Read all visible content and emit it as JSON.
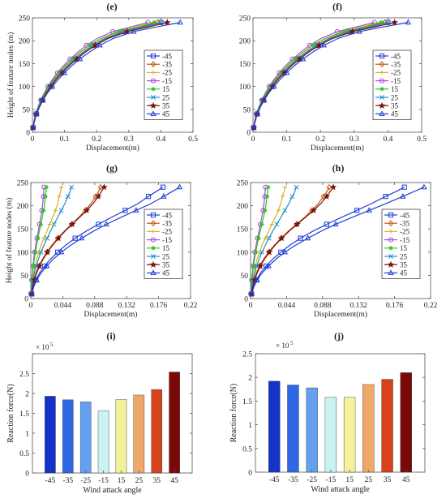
{
  "chart_data": [
    {
      "panel": "(e)",
      "type": "line",
      "ylabel": "Height of feature nodes (m)",
      "xlabel": "Displacement(m)",
      "xlim": [
        0,
        0.5
      ],
      "ylim": [
        0,
        250
      ],
      "xticks": [
        0,
        0.1,
        0.2,
        0.3,
        0.4,
        0.5
      ],
      "xtick_labels": [
        "0",
        "0.1",
        "0.2",
        "0.3",
        "0.4",
        "0.5"
      ],
      "yticks": [
        0,
        50,
        100,
        150,
        200,
        250
      ],
      "legend_position": "right",
      "y": [
        10,
        25,
        40,
        55,
        70,
        85,
        100,
        115,
        130,
        145,
        160,
        175,
        190,
        205,
        220,
        230,
        240
      ],
      "series": [
        {
          "name": "-45",
          "color": "#1f3fd6",
          "marker": "square",
          "values": [
            0.002,
            0.006,
            0.012,
            0.02,
            0.03,
            0.042,
            0.056,
            0.072,
            0.09,
            0.11,
            0.133,
            0.16,
            0.19,
            0.23,
            0.29,
            0.35,
            0.4
          ]
        },
        {
          "name": "-35",
          "color": "#c25a10",
          "marker": "diamond",
          "values": [
            0.002,
            0.006,
            0.011,
            0.019,
            0.029,
            0.041,
            0.054,
            0.07,
            0.088,
            0.108,
            0.131,
            0.157,
            0.187,
            0.225,
            0.28,
            0.335,
            0.39
          ]
        },
        {
          "name": "-25",
          "color": "#d8b41e",
          "marker": "plus",
          "values": [
            0.002,
            0.005,
            0.011,
            0.018,
            0.027,
            0.038,
            0.051,
            0.066,
            0.083,
            0.102,
            0.124,
            0.149,
            0.178,
            0.214,
            0.265,
            0.32,
            0.375
          ]
        },
        {
          "name": "-15",
          "color": "#a64bd9",
          "marker": "circle",
          "values": [
            0.002,
            0.005,
            0.01,
            0.017,
            0.026,
            0.036,
            0.048,
            0.062,
            0.078,
            0.096,
            0.117,
            0.141,
            0.168,
            0.202,
            0.25,
            0.305,
            0.36
          ]
        },
        {
          "name": "15",
          "color": "#2ec41e",
          "marker": "asterisk",
          "values": [
            0.002,
            0.006,
            0.011,
            0.018,
            0.027,
            0.038,
            0.051,
            0.066,
            0.083,
            0.102,
            0.124,
            0.149,
            0.178,
            0.214,
            0.27,
            0.33,
            0.38
          ]
        },
        {
          "name": "25",
          "color": "#1e8fd0",
          "marker": "x",
          "values": [
            0.002,
            0.006,
            0.012,
            0.02,
            0.03,
            0.042,
            0.056,
            0.072,
            0.09,
            0.11,
            0.133,
            0.16,
            0.19,
            0.228,
            0.285,
            0.345,
            0.4
          ]
        },
        {
          "name": "35",
          "color": "#7a1010",
          "marker": "star",
          "values": [
            0.002,
            0.006,
            0.012,
            0.021,
            0.031,
            0.043,
            0.058,
            0.074,
            0.093,
            0.114,
            0.138,
            0.165,
            0.196,
            0.236,
            0.295,
            0.36,
            0.42
          ]
        },
        {
          "name": "45",
          "color": "#1f3fd6",
          "marker": "triangle",
          "values": [
            0.002,
            0.007,
            0.013,
            0.022,
            0.033,
            0.046,
            0.062,
            0.08,
            0.1,
            0.122,
            0.148,
            0.177,
            0.21,
            0.252,
            0.315,
            0.385,
            0.46
          ]
        }
      ]
    },
    {
      "panel": "(f)",
      "type": "line",
      "ylabel": "",
      "xlabel": "Displacement(m)",
      "xlim": [
        0,
        0.5
      ],
      "ylim": [
        0,
        250
      ],
      "xticks": [
        0,
        0.1,
        0.2,
        0.3,
        0.4,
        0.5
      ],
      "xtick_labels": [
        "0",
        "0.1",
        "0.2",
        "0.3",
        "0.4",
        "0.5"
      ],
      "yticks": [
        0,
        50,
        100,
        150,
        200,
        250
      ],
      "legend_position": "right",
      "y": [
        10,
        25,
        40,
        55,
        70,
        85,
        100,
        115,
        130,
        145,
        160,
        175,
        190,
        205,
        220,
        230,
        240
      ],
      "series": [
        {
          "name": "-45",
          "color": "#1f3fd6",
          "marker": "square",
          "values": [
            0.002,
            0.006,
            0.012,
            0.02,
            0.03,
            0.042,
            0.056,
            0.072,
            0.09,
            0.11,
            0.133,
            0.16,
            0.19,
            0.23,
            0.29,
            0.35,
            0.4
          ]
        },
        {
          "name": "-35",
          "color": "#c25a10",
          "marker": "diamond",
          "values": [
            0.002,
            0.006,
            0.011,
            0.019,
            0.029,
            0.041,
            0.054,
            0.07,
            0.088,
            0.108,
            0.131,
            0.157,
            0.187,
            0.225,
            0.28,
            0.335,
            0.39
          ]
        },
        {
          "name": "-25",
          "color": "#d8b41e",
          "marker": "plus",
          "values": [
            0.002,
            0.005,
            0.011,
            0.018,
            0.027,
            0.038,
            0.051,
            0.066,
            0.083,
            0.102,
            0.124,
            0.149,
            0.178,
            0.214,
            0.265,
            0.32,
            0.375
          ]
        },
        {
          "name": "-15",
          "color": "#a64bd9",
          "marker": "circle",
          "values": [
            0.002,
            0.005,
            0.01,
            0.017,
            0.026,
            0.036,
            0.048,
            0.062,
            0.078,
            0.096,
            0.117,
            0.141,
            0.168,
            0.202,
            0.25,
            0.305,
            0.36
          ]
        },
        {
          "name": "15",
          "color": "#2ec41e",
          "marker": "asterisk",
          "values": [
            0.002,
            0.006,
            0.011,
            0.018,
            0.027,
            0.038,
            0.051,
            0.066,
            0.083,
            0.102,
            0.124,
            0.149,
            0.178,
            0.214,
            0.27,
            0.33,
            0.38
          ]
        },
        {
          "name": "25",
          "color": "#1e8fd0",
          "marker": "x",
          "values": [
            0.002,
            0.006,
            0.012,
            0.02,
            0.03,
            0.042,
            0.056,
            0.072,
            0.09,
            0.11,
            0.133,
            0.16,
            0.19,
            0.228,
            0.285,
            0.345,
            0.4
          ]
        },
        {
          "name": "35",
          "color": "#7a1010",
          "marker": "star",
          "values": [
            0.002,
            0.006,
            0.012,
            0.021,
            0.031,
            0.043,
            0.058,
            0.074,
            0.093,
            0.114,
            0.138,
            0.165,
            0.196,
            0.236,
            0.295,
            0.36,
            0.42
          ]
        },
        {
          "name": "45",
          "color": "#1f3fd6",
          "marker": "triangle",
          "values": [
            0.002,
            0.007,
            0.013,
            0.022,
            0.033,
            0.046,
            0.062,
            0.08,
            0.1,
            0.122,
            0.148,
            0.177,
            0.21,
            0.252,
            0.315,
            0.385,
            0.46
          ]
        }
      ]
    },
    {
      "panel": "(g)",
      "type": "line",
      "ylabel": "Height of feature nodes (m)",
      "xlabel": "Displacement(m)",
      "xlim": [
        0,
        0.22
      ],
      "ylim": [
        0,
        250
      ],
      "xticks": [
        0,
        0.044,
        0.088,
        0.132,
        0.176,
        0.22
      ],
      "xtick_labels": [
        "0",
        "0.044",
        "0.088",
        "0.132",
        "0.176",
        "0.22"
      ],
      "yticks": [
        0,
        50,
        100,
        150,
        200,
        250
      ],
      "legend_position": "right",
      "y": [
        10,
        25,
        40,
        55,
        70,
        85,
        100,
        115,
        130,
        145,
        160,
        175,
        190,
        205,
        220,
        230,
        240
      ],
      "series": [
        {
          "name": "-45",
          "color": "#1f3fd6",
          "marker": "square",
          "values": [
            0.001,
            0.003,
            0.007,
            0.012,
            0.019,
            0.027,
            0.037,
            0.048,
            0.061,
            0.076,
            0.093,
            0.111,
            0.13,
            0.148,
            0.162,
            0.172,
            0.182
          ]
        },
        {
          "name": "-35",
          "color": "#c25a10",
          "marker": "diamond",
          "values": [
            0.001,
            0.002,
            0.004,
            0.007,
            0.011,
            0.016,
            0.022,
            0.029,
            0.037,
            0.046,
            0.056,
            0.066,
            0.075,
            0.083,
            0.089,
            0.093,
            0.096
          ]
        },
        {
          "name": "-25",
          "color": "#d8b41e",
          "marker": "plus",
          "values": [
            0.0005,
            0.001,
            0.002,
            0.004,
            0.006,
            0.008,
            0.011,
            0.014,
            0.018,
            0.022,
            0.026,
            0.03,
            0.034,
            0.037,
            0.039,
            0.041,
            0.042
          ]
        },
        {
          "name": "-15",
          "color": "#a64bd9",
          "marker": "circle",
          "values": [
            0.0003,
            0.0007,
            0.0013,
            0.0022,
            0.003,
            0.004,
            0.0053,
            0.0068,
            0.0085,
            0.0103,
            0.012,
            0.0137,
            0.0152,
            0.0164,
            0.0173,
            0.0178,
            0.0182
          ]
        },
        {
          "name": "15",
          "color": "#2ec41e",
          "marker": "asterisk",
          "values": [
            0.0003,
            0.0008,
            0.0015,
            0.0025,
            0.0035,
            0.0048,
            0.0063,
            0.008,
            0.0098,
            0.0118,
            0.0138,
            0.0158,
            0.0176,
            0.019,
            0.0202,
            0.0209,
            0.0215
          ]
        },
        {
          "name": "25",
          "color": "#1e8fd0",
          "marker": "x",
          "values": [
            0.0006,
            0.0015,
            0.003,
            0.005,
            0.0075,
            0.0105,
            0.014,
            0.018,
            0.0225,
            0.027,
            0.032,
            0.037,
            0.042,
            0.047,
            0.051,
            0.054,
            0.056
          ]
        },
        {
          "name": "35",
          "color": "#7a1010",
          "marker": "star",
          "values": [
            0.001,
            0.0025,
            0.005,
            0.008,
            0.012,
            0.017,
            0.023,
            0.03,
            0.038,
            0.047,
            0.057,
            0.067,
            0.077,
            0.086,
            0.093,
            0.097,
            0.101
          ]
        },
        {
          "name": "45",
          "color": "#1f3fd6",
          "marker": "triangle",
          "values": [
            0.0015,
            0.004,
            0.008,
            0.014,
            0.022,
            0.031,
            0.042,
            0.055,
            0.07,
            0.086,
            0.104,
            0.124,
            0.145,
            0.166,
            0.183,
            0.194,
            0.205
          ]
        }
      ]
    },
    {
      "panel": "(h)",
      "type": "line",
      "ylabel": "",
      "xlabel": "Displacement(m)",
      "xlim": [
        0,
        0.22
      ],
      "ylim": [
        0,
        250
      ],
      "xticks": [
        0,
        0.044,
        0.088,
        0.132,
        0.176,
        0.22
      ],
      "xtick_labels": [
        "0",
        "0.044",
        "0.088",
        "0.132",
        "0.176",
        "0.22"
      ],
      "yticks": [
        0,
        50,
        100,
        150,
        200,
        250
      ],
      "legend_position": "right",
      "y": [
        10,
        25,
        40,
        55,
        70,
        85,
        100,
        115,
        130,
        145,
        160,
        175,
        190,
        205,
        220,
        230,
        240
      ],
      "series": [
        {
          "name": "-45",
          "color": "#1f3fd6",
          "marker": "square",
          "values": [
            0.001,
            0.003,
            0.007,
            0.012,
            0.019,
            0.027,
            0.037,
            0.048,
            0.061,
            0.076,
            0.093,
            0.111,
            0.13,
            0.148,
            0.165,
            0.177,
            0.188
          ]
        },
        {
          "name": "-35",
          "color": "#c25a10",
          "marker": "diamond",
          "values": [
            0.001,
            0.002,
            0.004,
            0.007,
            0.011,
            0.016,
            0.022,
            0.029,
            0.037,
            0.046,
            0.056,
            0.066,
            0.075,
            0.083,
            0.089,
            0.093,
            0.096
          ]
        },
        {
          "name": "-25",
          "color": "#d8b41e",
          "marker": "plus",
          "values": [
            0.0005,
            0.001,
            0.002,
            0.004,
            0.006,
            0.008,
            0.011,
            0.014,
            0.018,
            0.022,
            0.026,
            0.03,
            0.034,
            0.037,
            0.039,
            0.041,
            0.042
          ]
        },
        {
          "name": "-15",
          "color": "#a64bd9",
          "marker": "circle",
          "values": [
            0.0003,
            0.0007,
            0.0013,
            0.0022,
            0.003,
            0.004,
            0.0053,
            0.0068,
            0.0085,
            0.0103,
            0.012,
            0.0137,
            0.0152,
            0.0164,
            0.0173,
            0.0178,
            0.0182
          ]
        },
        {
          "name": "15",
          "color": "#2ec41e",
          "marker": "asterisk",
          "values": [
            0.0003,
            0.0008,
            0.0015,
            0.0025,
            0.0035,
            0.0048,
            0.0063,
            0.008,
            0.0098,
            0.0118,
            0.0138,
            0.0158,
            0.0176,
            0.019,
            0.0202,
            0.0209,
            0.0215
          ]
        },
        {
          "name": "25",
          "color": "#1e8fd0",
          "marker": "x",
          "values": [
            0.0006,
            0.0015,
            0.003,
            0.005,
            0.0075,
            0.0105,
            0.014,
            0.018,
            0.0225,
            0.027,
            0.032,
            0.037,
            0.042,
            0.047,
            0.051,
            0.054,
            0.056
          ]
        },
        {
          "name": "35",
          "color": "#7a1010",
          "marker": "star",
          "values": [
            0.001,
            0.0025,
            0.005,
            0.008,
            0.012,
            0.017,
            0.023,
            0.03,
            0.038,
            0.047,
            0.057,
            0.067,
            0.077,
            0.086,
            0.093,
            0.097,
            0.101
          ]
        },
        {
          "name": "45",
          "color": "#1f3fd6",
          "marker": "triangle",
          "values": [
            0.0015,
            0.004,
            0.008,
            0.014,
            0.022,
            0.031,
            0.042,
            0.055,
            0.07,
            0.086,
            0.104,
            0.124,
            0.145,
            0.166,
            0.186,
            0.199,
            0.212
          ]
        }
      ]
    },
    {
      "panel": "(i)",
      "type": "bar",
      "ylabel": "Reaction force(N)",
      "xlabel": "Wind attack angle",
      "scale_label": "× 10",
      "scale_exp": "5",
      "ylim": [
        0,
        3
      ],
      "yticks": [
        0,
        0.5,
        1,
        1.5,
        2,
        2.5,
        3
      ],
      "ytick_labels": [
        "0",
        "0.5",
        "1",
        "1.5",
        "2",
        "2.5",
        ""
      ],
      "categories": [
        "-45",
        "-35",
        "-25",
        "-15",
        "15",
        "25",
        "35",
        "45"
      ],
      "values": [
        1.93,
        1.84,
        1.79,
        1.57,
        1.85,
        1.96,
        2.1,
        2.54
      ],
      "colors": [
        "#1533c9",
        "#2f68e6",
        "#64a0f0",
        "#c9f2f2",
        "#f3f19a",
        "#f0a86a",
        "#d8421a",
        "#7a0a0a"
      ]
    },
    {
      "panel": "(j)",
      "type": "bar",
      "ylabel": "Reaction force(N)",
      "xlabel": "Wind attack angle",
      "scale_label": "× 10",
      "scale_exp": "5",
      "ylim": [
        0,
        2.5
      ],
      "yticks": [
        0,
        0.5,
        1,
        1.5,
        2,
        2.5
      ],
      "ytick_labels": [
        "0",
        "0.5",
        "1",
        "1.5",
        "2",
        "2.5"
      ],
      "categories": [
        "-45",
        "-35",
        "-25",
        "-15",
        "15",
        "25",
        "35",
        "45"
      ],
      "values": [
        1.92,
        1.84,
        1.78,
        1.58,
        1.58,
        1.85,
        1.96,
        2.1
      ],
      "colors": [
        "#1533c9",
        "#2f68e6",
        "#64a0f0",
        "#c9f2f2",
        "#f3f19a",
        "#f0a86a",
        "#d8421a",
        "#7a0a0a"
      ]
    }
  ]
}
